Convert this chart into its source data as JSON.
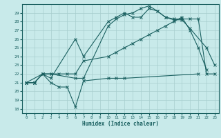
{
  "title": "",
  "xlabel": "Humidex (Indice chaleur)",
  "bg_color": "#c8eaea",
  "grid_color": "#a8cece",
  "line_color": "#1a6060",
  "xlim": [
    -0.5,
    23.5
  ],
  "ylim": [
    17.5,
    30.0
  ],
  "yticks": [
    18,
    19,
    20,
    21,
    22,
    23,
    24,
    25,
    26,
    27,
    28,
    29
  ],
  "xticks": [
    0,
    1,
    2,
    3,
    4,
    5,
    6,
    7,
    8,
    9,
    10,
    11,
    12,
    13,
    14,
    15,
    16,
    17,
    18,
    19,
    20,
    21,
    22,
    23
  ],
  "series1_x": [
    0,
    1,
    2,
    3,
    4,
    5,
    6,
    7,
    10,
    11,
    12,
    21
  ],
  "series1_y": [
    21.0,
    21.0,
    22.0,
    21.0,
    20.5,
    20.5,
    18.2,
    21.2,
    21.5,
    21.5,
    21.5,
    22.0
  ],
  "series2_x": [
    0,
    2,
    3,
    6,
    7,
    10,
    11,
    12,
    13,
    14,
    15,
    16,
    17,
    18,
    19,
    20,
    22,
    23
  ],
  "series2_y": [
    21.0,
    22.0,
    21.5,
    26.0,
    24.0,
    28.0,
    28.5,
    29.0,
    28.5,
    28.5,
    29.5,
    29.2,
    28.5,
    28.2,
    28.2,
    27.2,
    25.0,
    23.0
  ],
  "series3_x": [
    0,
    1,
    2,
    3,
    6,
    7,
    10,
    11,
    12,
    13,
    14,
    15,
    16,
    17,
    18,
    19,
    20,
    21,
    22,
    23
  ],
  "series3_y": [
    21.0,
    21.0,
    22.0,
    22.0,
    21.5,
    21.5,
    27.5,
    28.3,
    28.8,
    29.0,
    29.5,
    29.8,
    29.2,
    28.5,
    28.3,
    28.3,
    28.3,
    28.3,
    22.0,
    22.0
  ],
  "series4_x": [
    0,
    1,
    2,
    3,
    4,
    5,
    6,
    7,
    10,
    11,
    12,
    13,
    14,
    15,
    16,
    17,
    18,
    19,
    20,
    21,
    22
  ],
  "series4_y": [
    21.0,
    21.0,
    22.0,
    22.0,
    22.0,
    22.0,
    22.0,
    23.5,
    24.0,
    24.5,
    25.0,
    25.5,
    26.0,
    26.5,
    27.0,
    27.5,
    28.0,
    28.5,
    27.0,
    25.0,
    22.5
  ]
}
